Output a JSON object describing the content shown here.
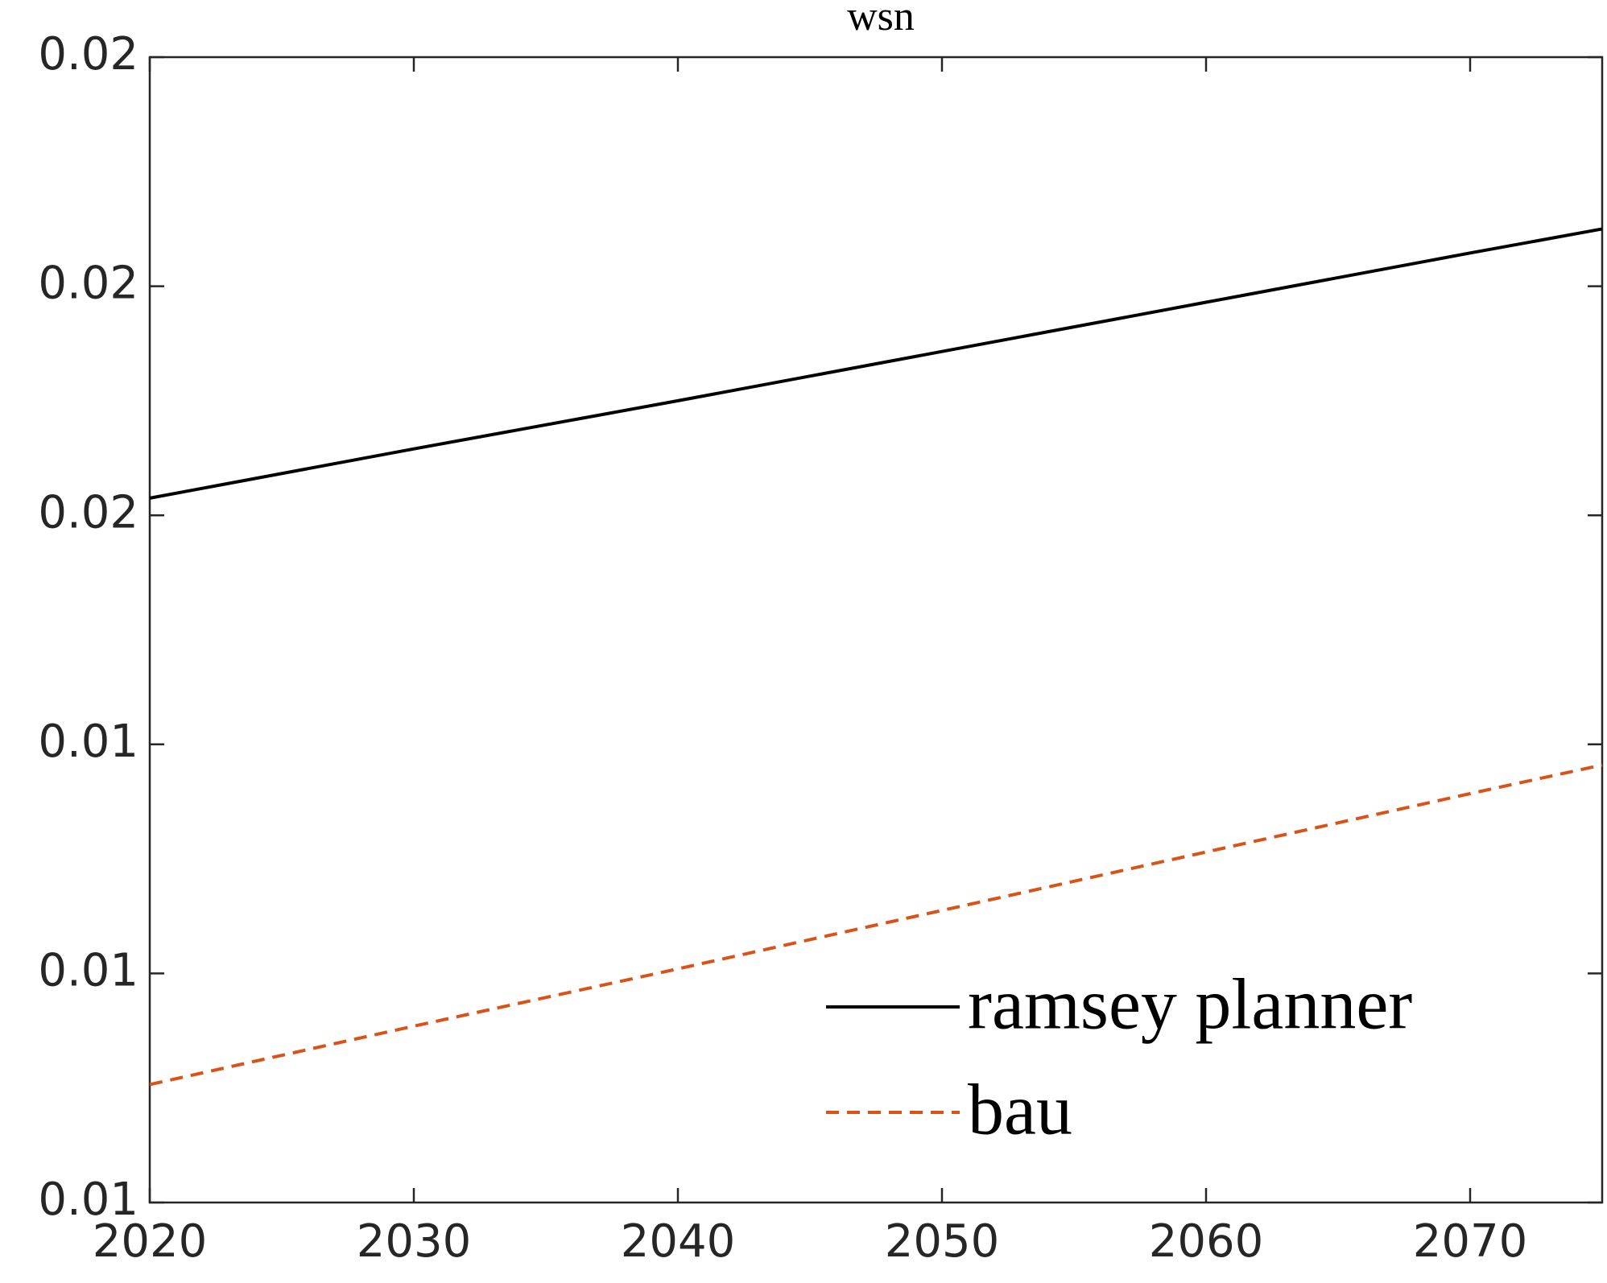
{
  "chart_data": {
    "type": "line",
    "title": "wsn",
    "x": [
      2020,
      2030,
      2040,
      2050,
      2060,
      2070,
      2075
    ],
    "series": [
      {
        "name": "ramsey planner",
        "color": "#000000",
        "dash": false,
        "values": [
          0.01615,
          0.01658,
          0.017,
          0.01743,
          0.01786,
          0.01829,
          0.0185
        ]
      },
      {
        "name": "bau",
        "color": "#d95319",
        "dash": true,
        "values": [
          0.01103,
          0.01154,
          0.01204,
          0.01255,
          0.01306,
          0.01357,
          0.01382
        ]
      }
    ],
    "xlim": [
      2020,
      2075
    ],
    "xticks": [
      2020,
      2030,
      2040,
      2050,
      2060,
      2070
    ],
    "ylim": [
      0.01,
      0.02
    ],
    "yticks": [
      0.01,
      {
        "value": 0.012,
        "label": "0.01"
      },
      {
        "value": 0.014,
        "label": "0.01"
      },
      {
        "value": 0.016,
        "label": "0.02"
      },
      {
        "value": 0.018,
        "label": "0.02"
      },
      0.02
    ],
    "legend": "lower right",
    "grid": false
  }
}
